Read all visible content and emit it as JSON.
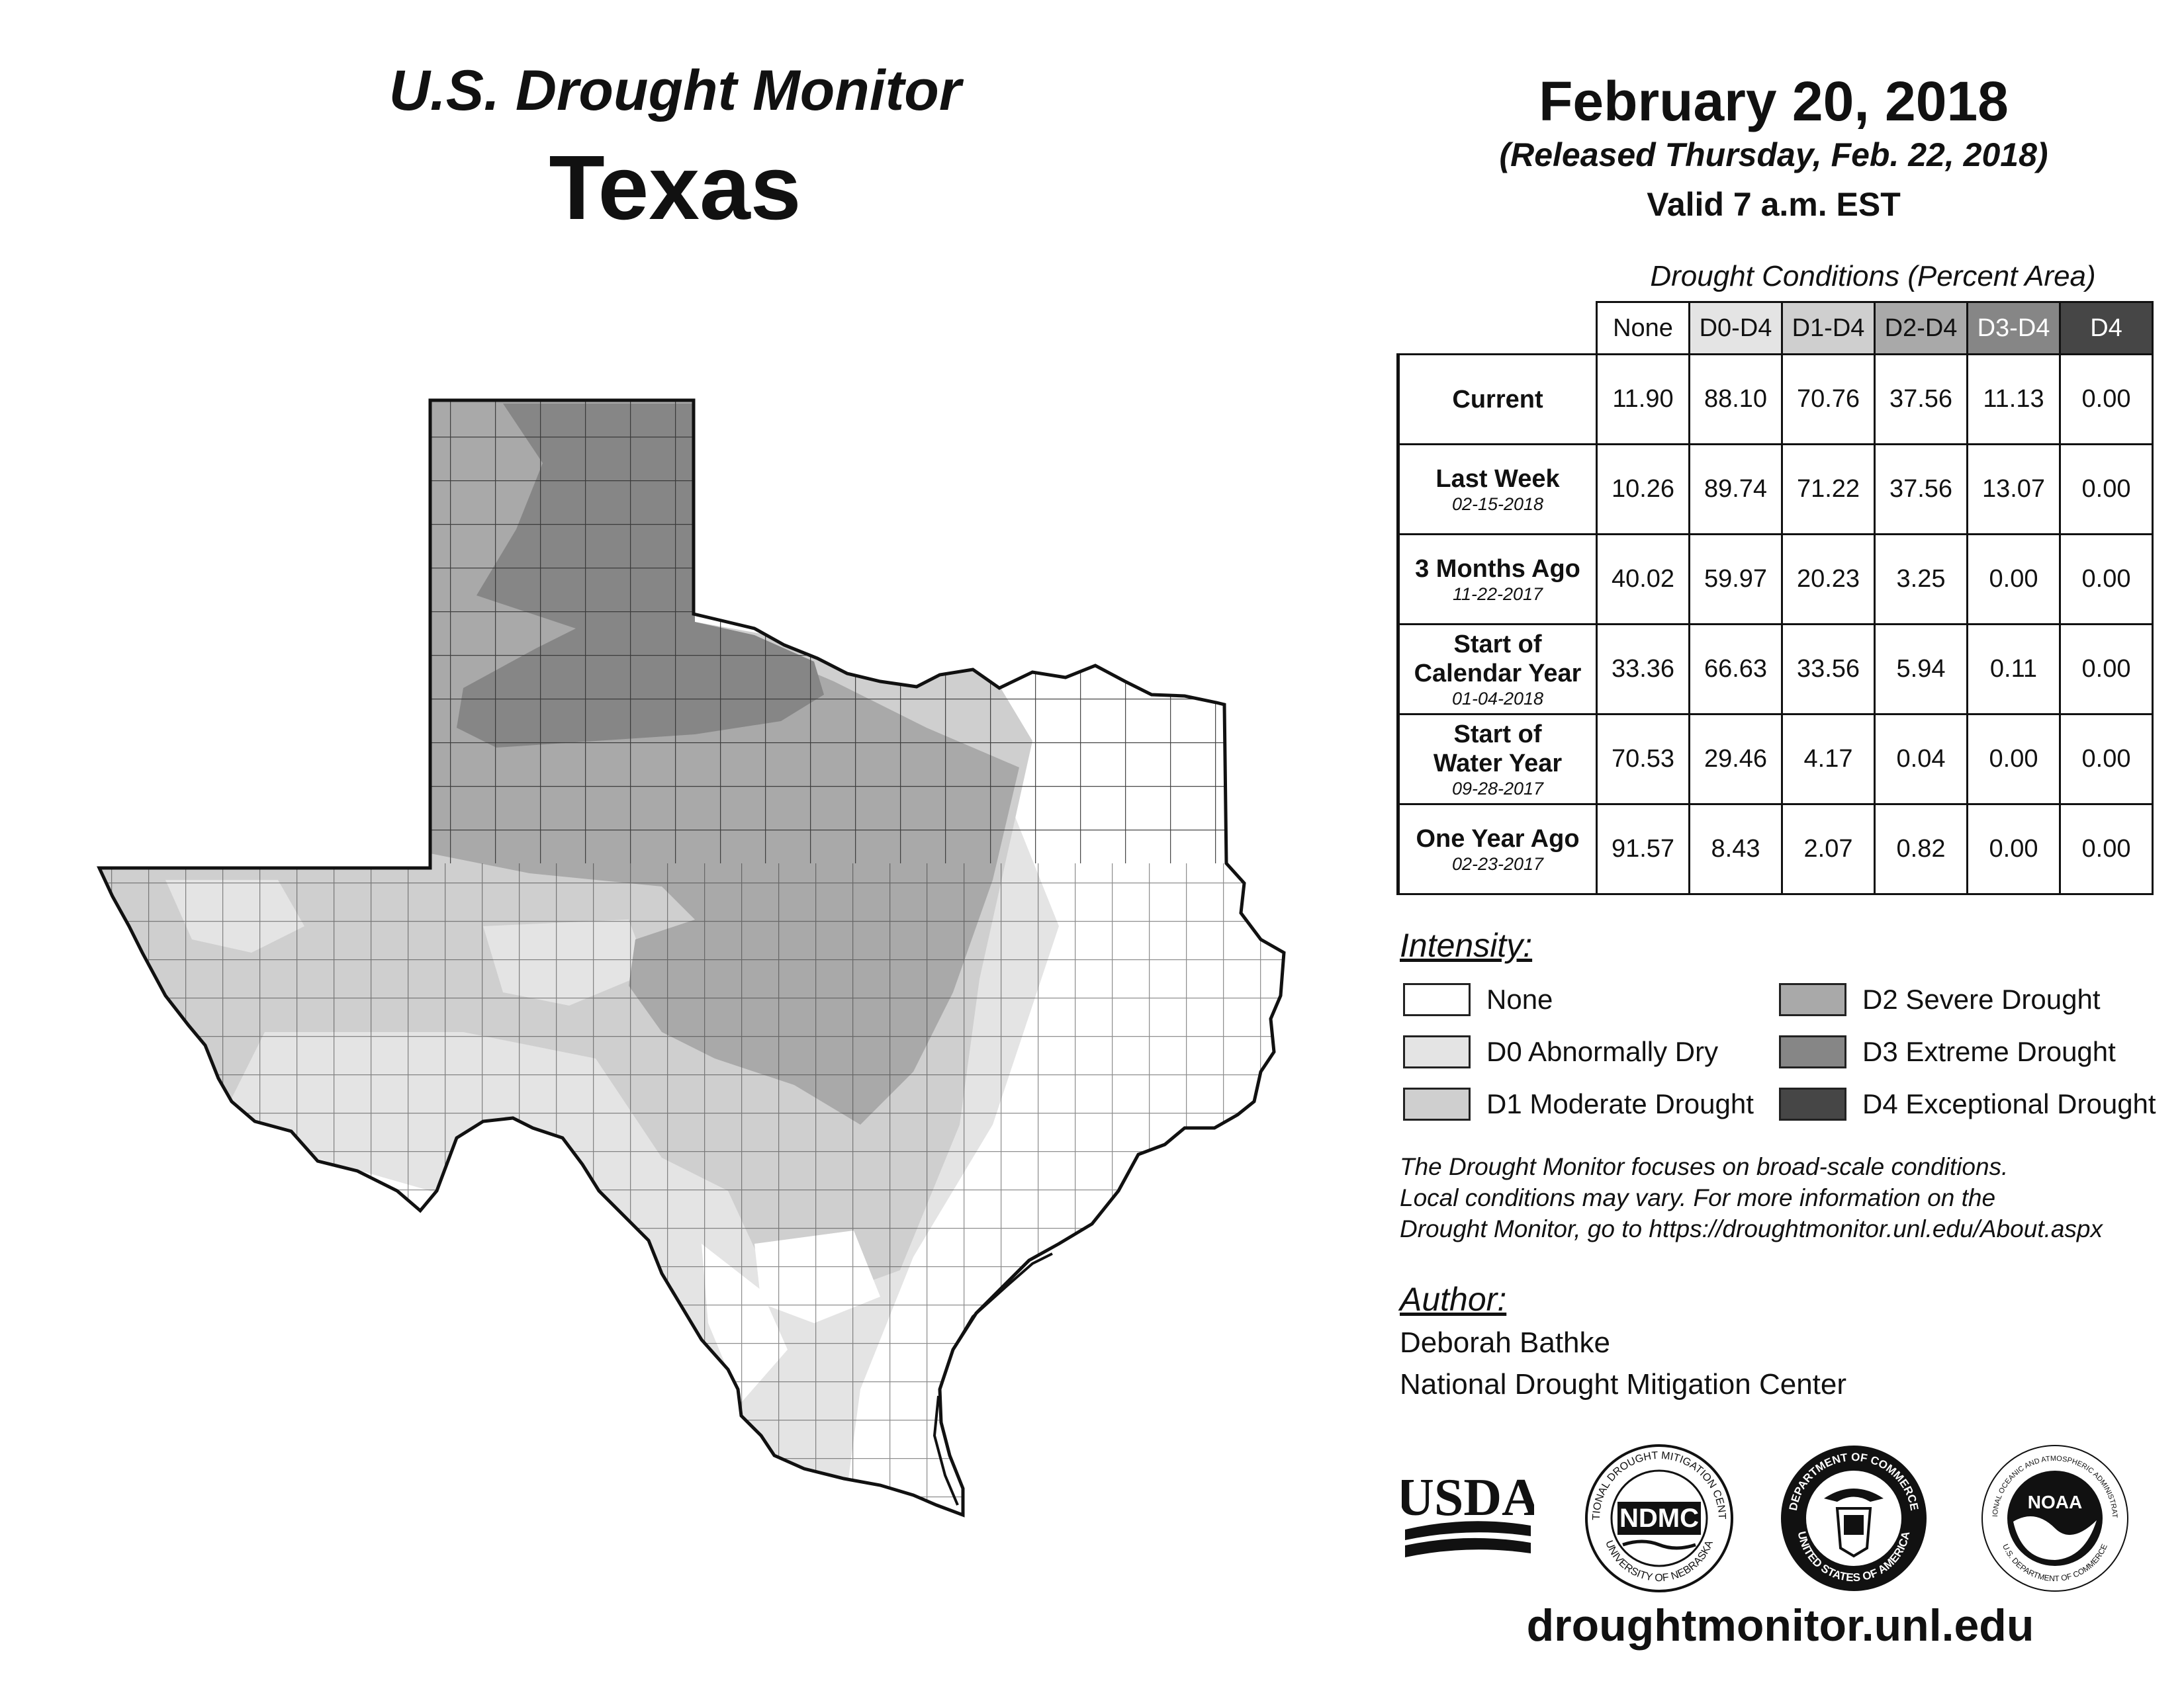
{
  "header": {
    "title": "U.S. Drought Monitor",
    "state": "Texas",
    "date": "February 20, 2018",
    "released": "(Released Thursday, Feb. 22, 2018)",
    "valid": "Valid 7 a.m. EST"
  },
  "table": {
    "caption": "Drought Conditions (Percent Area)",
    "columns": [
      "None",
      "D0-D4",
      "D1-D4",
      "D2-D4",
      "D3-D4",
      "D4"
    ],
    "rows": [
      {
        "label_lines": [
          "Current"
        ],
        "date": "",
        "values": [
          "11.90",
          "88.10",
          "70.76",
          "37.56",
          "11.13",
          "0.00"
        ]
      },
      {
        "label_lines": [
          "Last Week"
        ],
        "date": "02-15-2018",
        "values": [
          "10.26",
          "89.74",
          "71.22",
          "37.56",
          "13.07",
          "0.00"
        ]
      },
      {
        "label_lines": [
          "3 Months Ago"
        ],
        "date": "11-22-2017",
        "values": [
          "40.02",
          "59.97",
          "20.23",
          "3.25",
          "0.00",
          "0.00"
        ]
      },
      {
        "label_lines": [
          "Start of",
          "Calendar Year"
        ],
        "date": "01-04-2018",
        "values": [
          "33.36",
          "66.63",
          "33.56",
          "5.94",
          "0.11",
          "0.00"
        ]
      },
      {
        "label_lines": [
          "Start of",
          "Water Year"
        ],
        "date": "09-28-2017",
        "values": [
          "70.53",
          "29.46",
          "4.17",
          "0.04",
          "0.00",
          "0.00"
        ]
      },
      {
        "label_lines": [
          "One Year Ago"
        ],
        "date": "02-23-2017",
        "values": [
          "91.57",
          "8.43",
          "2.07",
          "0.82",
          "0.00",
          "0.00"
        ]
      }
    ]
  },
  "legend": {
    "title": "Intensity:",
    "items": [
      {
        "label": "None",
        "color": "#ffffff"
      },
      {
        "label": "D0 Abnormally Dry",
        "color": "#e4e4e4"
      },
      {
        "label": "D1 Moderate Drought",
        "color": "#cfcfcf"
      },
      {
        "label": "D2 Severe Drought",
        "color": "#a9a9a9"
      },
      {
        "label": "D3 Extreme Drought",
        "color": "#868686"
      },
      {
        "label": "D4 Exceptional Drought",
        "color": "#464646"
      }
    ]
  },
  "note": {
    "line1": "The Drought Monitor focuses on broad-scale conditions.",
    "line2": "Local conditions may vary. For more information on the",
    "line3": "Drought Monitor, go to https://droughtmonitor.unl.edu/About.aspx"
  },
  "author": {
    "title": "Author:",
    "name": "Deborah Bathke",
    "org": "National Drought Mitigation Center"
  },
  "logos": {
    "usda": "USDA",
    "ndmc": "NDMC",
    "ndmc_ring_top": "NATIONAL DROUGHT MITIGATION CENTER",
    "ndmc_ring_bottom": "UNIVERSITY OF NEBRASKA",
    "doc_ring_top": "DEPARTMENT OF COMMERCE",
    "doc_ring_bottom": "UNITED STATES OF AMERICA",
    "noaa": "NOAA",
    "noaa_ring_top": "NATIONAL OCEANIC AND ATMOSPHERIC ADMINISTRATION",
    "noaa_ring_bottom": "U.S. DEPARTMENT OF COMMERCE"
  },
  "footer": {
    "url": "droughtmonitor.unl.edu"
  }
}
